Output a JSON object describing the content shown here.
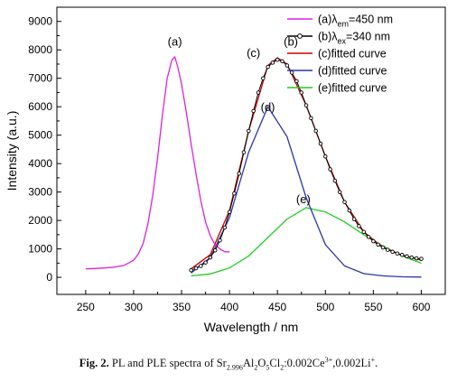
{
  "chart_data": {
    "type": "line",
    "xlabel": "Wavelength / nm",
    "ylabel": "Intensity (a.u.)",
    "xlim": [
      220,
      625
    ],
    "ylim": [
      -600,
      9500
    ],
    "x_ticks": [
      250,
      300,
      350,
      400,
      450,
      500,
      550,
      600
    ],
    "y_ticks": [
      0,
      1000,
      2000,
      3000,
      4000,
      5000,
      6000,
      7000,
      8000,
      9000
    ],
    "legend_position": "top-right",
    "legend_labels": {
      "a": {
        "prefix": "(a)",
        "symbol": "λ",
        "sub": "em",
        "suffix": "=450 nm"
      },
      "b": {
        "prefix": "(b)",
        "symbol": "λ",
        "sub": "ex",
        "suffix": "=340 nm"
      },
      "c": "(c)fitted curve",
      "d": "(d)fitted curve",
      "e": "(e)fitted curve"
    },
    "series": [
      {
        "name": "(a)λem=450 nm",
        "id": "a",
        "color": "#dd22dd",
        "x": [
          250,
          260,
          270,
          280,
          290,
          300,
          305,
          310,
          315,
          320,
          325,
          330,
          335,
          340,
          343,
          346,
          350,
          355,
          360,
          365,
          370,
          375,
          380,
          385,
          390,
          395,
          400
        ],
        "y": [
          300,
          310,
          330,
          360,
          420,
          600,
          820,
          1200,
          1900,
          2900,
          4200,
          5700,
          7000,
          7650,
          7750,
          7400,
          6800,
          5800,
          4700,
          3650,
          2700,
          1950,
          1450,
          1150,
          1000,
          900,
          900
        ]
      },
      {
        "name": "(b)λex=340 nm",
        "id": "b",
        "color": "#000000",
        "x": [
          360,
          365,
          370,
          375,
          380,
          385,
          390,
          395,
          400,
          405,
          410,
          415,
          420,
          425,
          430,
          435,
          440,
          445,
          450,
          455,
          460,
          465,
          470,
          475,
          480,
          485,
          490,
          495,
          500,
          505,
          510,
          515,
          520,
          525,
          530,
          535,
          540,
          545,
          550,
          555,
          560,
          565,
          570,
          575,
          580,
          585,
          590,
          595,
          600
        ],
        "y": [
          250,
          320,
          400,
          520,
          700,
          950,
          1300,
          1750,
          2300,
          2950,
          3650,
          4400,
          5150,
          5850,
          6500,
          7000,
          7400,
          7550,
          7650,
          7600,
          7450,
          7200,
          6900,
          6500,
          6050,
          5600,
          5150,
          4700,
          4250,
          3800,
          3400,
          3000,
          2650,
          2350,
          2050,
          1800,
          1600,
          1420,
          1270,
          1150,
          1050,
          970,
          900,
          840,
          790,
          740,
          700,
          670,
          650
        ]
      },
      {
        "name": "(c)fitted curve",
        "id": "c",
        "color": "#cc0000",
        "x": [
          360,
          380,
          400,
          420,
          440,
          450,
          460,
          480,
          500,
          520,
          540,
          560,
          580,
          600
        ],
        "y": [
          300,
          800,
          2350,
          5150,
          7450,
          7720,
          7500,
          6050,
          4250,
          2650,
          1600,
          1050,
          780,
          600
        ]
      },
      {
        "name": "(d)fitted curve",
        "id": "d",
        "color": "#2a36a8",
        "x": [
          360,
          380,
          400,
          420,
          440,
          460,
          480,
          500,
          520,
          540,
          560,
          580,
          600
        ],
        "y": [
          150,
          700,
          2100,
          4400,
          6000,
          4950,
          2800,
          1150,
          400,
          130,
          50,
          20,
          10
        ]
      },
      {
        "name": "(e)fitted curve",
        "id": "e",
        "color": "#22cc22",
        "x": [
          360,
          380,
          400,
          420,
          440,
          460,
          480,
          500,
          520,
          540,
          560,
          580,
          600
        ],
        "y": [
          50,
          120,
          330,
          750,
          1400,
          2050,
          2450,
          2300,
          1950,
          1500,
          1100,
          750,
          500
        ]
      }
    ],
    "annotations": [
      {
        "text": "(a)",
        "x": 343,
        "y": 8150
      },
      {
        "text": "(c)",
        "x": 425,
        "y": 7750
      },
      {
        "text": "(b)",
        "x": 464,
        "y": 8150
      },
      {
        "text": "(d)",
        "x": 440,
        "y": 5850
      },
      {
        "text": "(e)",
        "x": 477,
        "y": 2600
      }
    ]
  },
  "caption": {
    "fig_label": "Fig. 2.",
    "text_before": " PL and PLE spectra of Sr",
    "sub1": "2.996",
    "text2": "Al",
    "sub2": "2",
    "text3": "O",
    "sub3": "5",
    "text4": "Cl",
    "sub4": "2",
    "text5": ":0.002Ce",
    "sup1": "3+",
    "text6": ",0.002Li",
    "sup2": "+",
    "text7": "."
  }
}
